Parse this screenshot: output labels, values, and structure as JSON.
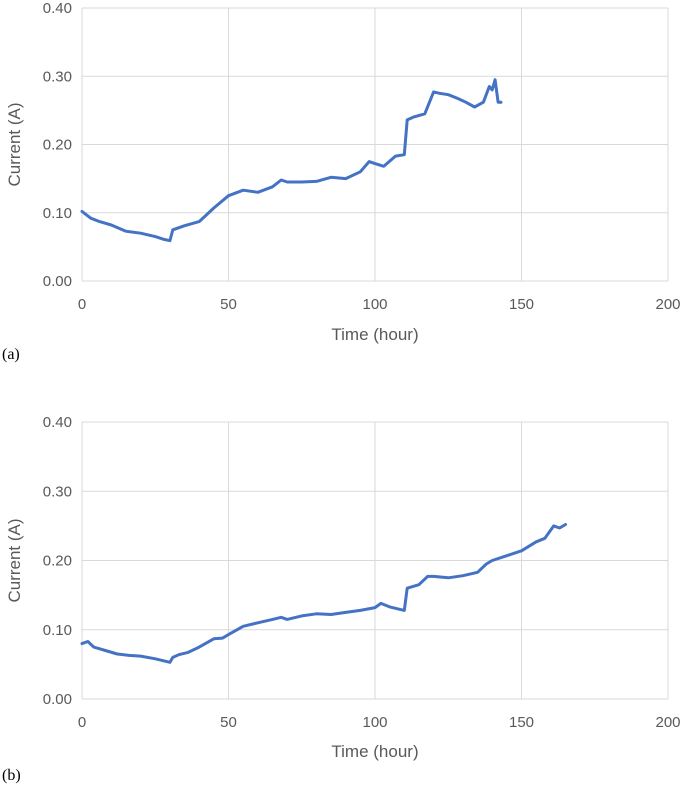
{
  "chart_data": [
    {
      "type": "line",
      "panel_label": "(a)",
      "xlabel": "Time (hour)",
      "ylabel": "Current (A)",
      "xlim": [
        0,
        200
      ],
      "ylim": [
        0,
        0.4
      ],
      "xticks": [
        "0",
        "50",
        "100",
        "150",
        "200"
      ],
      "yticks": [
        "0.00",
        "0.10",
        "0.20",
        "0.30",
        "0.40"
      ],
      "grid": true,
      "series": [
        {
          "color": "#4472c4",
          "x": [
            0,
            3,
            6,
            10,
            15,
            20,
            25,
            28,
            30,
            31,
            35,
            40,
            45,
            50,
            55,
            60,
            65,
            68,
            70,
            75,
            80,
            85,
            90,
            95,
            98,
            100,
            103,
            107,
            110,
            111,
            113,
            117,
            120,
            122,
            125,
            128,
            131,
            134,
            137,
            139,
            140,
            141,
            142,
            143
          ],
          "y": [
            0.102,
            0.092,
            0.087,
            0.082,
            0.073,
            0.07,
            0.065,
            0.061,
            0.059,
            0.075,
            0.081,
            0.087,
            0.107,
            0.125,
            0.133,
            0.13,
            0.138,
            0.148,
            0.145,
            0.145,
            0.146,
            0.152,
            0.15,
            0.16,
            0.175,
            0.172,
            0.168,
            0.183,
            0.185,
            0.236,
            0.24,
            0.245,
            0.277,
            0.275,
            0.273,
            0.268,
            0.262,
            0.255,
            0.262,
            0.285,
            0.28,
            0.295,
            0.262,
            0.262
          ]
        }
      ]
    },
    {
      "type": "line",
      "panel_label": "(b)",
      "xlabel": "Time (hour)",
      "ylabel": "Current (A)",
      "xlim": [
        0,
        200
      ],
      "ylim": [
        0,
        0.4
      ],
      "xticks": [
        "0",
        "50",
        "100",
        "150",
        "200"
      ],
      "yticks": [
        "0.00",
        "0.10",
        "0.20",
        "0.30",
        "0.40"
      ],
      "grid": true,
      "series": [
        {
          "color": "#4472c4",
          "x": [
            0,
            2,
            4,
            8,
            12,
            16,
            20,
            25,
            30,
            31,
            33,
            36,
            40,
            45,
            48,
            50,
            55,
            60,
            65,
            68,
            70,
            75,
            80,
            85,
            90,
            95,
            100,
            102,
            105,
            110,
            111,
            115,
            118,
            120,
            125,
            130,
            135,
            138,
            140,
            145,
            150,
            155,
            158,
            161,
            163,
            165
          ],
          "y": [
            0.08,
            0.083,
            0.075,
            0.07,
            0.065,
            0.063,
            0.062,
            0.058,
            0.053,
            0.06,
            0.064,
            0.067,
            0.075,
            0.087,
            0.088,
            0.093,
            0.105,
            0.11,
            0.115,
            0.118,
            0.115,
            0.12,
            0.123,
            0.122,
            0.125,
            0.128,
            0.132,
            0.138,
            0.133,
            0.128,
            0.16,
            0.165,
            0.177,
            0.177,
            0.175,
            0.178,
            0.183,
            0.195,
            0.2,
            0.207,
            0.214,
            0.227,
            0.232,
            0.25,
            0.247,
            0.252
          ]
        }
      ]
    }
  ]
}
